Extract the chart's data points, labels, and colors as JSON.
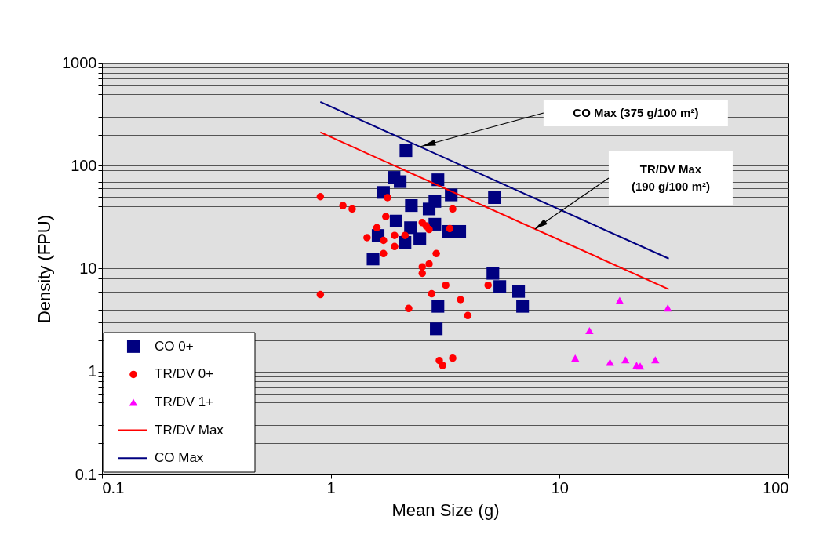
{
  "chart_data": {
    "type": "scatter",
    "xlabel": "Mean Size (g)",
    "ylabel": "Density (FPU)",
    "log": "xy",
    "xlim": [
      0.1,
      100
    ],
    "ylim": [
      0.1,
      1000
    ],
    "xticks": [
      0.1,
      1,
      10,
      100
    ],
    "yticks": [
      0.1,
      {
        "value": 0.2,
        "label": null
      },
      {
        "value": 0.3,
        "label": null
      },
      {
        "value": 0.4,
        "label": null
      },
      {
        "value": 0.5,
        "label": null
      },
      {
        "value": 0.6,
        "label": null
      },
      {
        "value": 0.7,
        "label": null
      },
      {
        "value": 0.8,
        "label": null
      },
      {
        "value": 0.9,
        "label": null
      },
      1,
      {
        "value": 2,
        "label": null
      },
      {
        "value": 3,
        "label": null
      },
      {
        "value": 4,
        "label": null
      },
      {
        "value": 5,
        "label": null
      },
      {
        "value": 6,
        "label": null
      },
      {
        "value": 7,
        "label": null
      },
      {
        "value": 8,
        "label": null
      },
      {
        "value": 9,
        "label": null
      },
      10,
      {
        "value": 20,
        "label": null
      },
      {
        "value": 30,
        "label": null
      },
      {
        "value": 40,
        "label": null
      },
      {
        "value": 50,
        "label": null
      },
      {
        "value": 60,
        "label": null
      },
      {
        "value": 70,
        "label": null
      },
      {
        "value": 80,
        "label": null
      },
      {
        "value": 90,
        "label": null
      },
      100,
      {
        "value": 200,
        "label": null
      },
      {
        "value": 300,
        "label": null
      },
      {
        "value": 400,
        "label": null
      },
      {
        "value": 500,
        "label": null
      },
      {
        "value": 600,
        "label": null
      },
      {
        "value": 700,
        "label": null
      },
      {
        "value": 800,
        "label": null
      },
      {
        "value": 900,
        "label": null
      },
      1000
    ],
    "grid": "y",
    "legend": "bottom left",
    "series": [
      {
        "name": "CO 0+",
        "color": "#000080",
        "marker": "square",
        "x": [
          2.13,
          1.89,
          2.01,
          1.7,
          2.94,
          3.36,
          5.19,
          2.25,
          2.85,
          2.69,
          1.93,
          2.23,
          2.85,
          3.26,
          3.66,
          1.61,
          2.11,
          2.45,
          1.53,
          5.11,
          5.48,
          6.62,
          6.89,
          2.94,
          2.89
        ],
        "values": [
          140,
          77,
          70,
          55,
          73,
          52,
          49,
          41,
          45,
          38,
          29,
          25,
          27,
          23,
          23,
          21,
          18,
          19.5,
          12.4,
          9.0,
          6.7,
          6.0,
          4.3,
          4.3,
          2.6
        ]
      },
      {
        "name": "TR/DV 0+",
        "color": "#ff0000",
        "marker": "circle",
        "x": [
          0.9,
          1.13,
          1.24,
          1.77,
          1.74,
          1.59,
          1.44,
          1.7,
          1.9,
          2.11,
          1.9,
          1.7,
          2.51,
          2.61,
          2.69,
          3.41,
          3.31,
          2.89,
          2.69,
          2.51,
          2.51,
          3.18,
          2.76,
          4.87,
          3.69,
          3.97,
          2.19,
          0.9,
          2.98,
          3.08,
          3.41
        ],
        "values": [
          50,
          41,
          38,
          49,
          32,
          25,
          20,
          18.8,
          21,
          21,
          16.4,
          14,
          28,
          26,
          24,
          38,
          24.5,
          14,
          11.1,
          10.4,
          9.0,
          6.9,
          5.7,
          6.9,
          5.0,
          3.5,
          4.1,
          5.6,
          1.28,
          1.15,
          1.35
        ]
      },
      {
        "name": "TR/DV 1+",
        "color": "#ff00ff",
        "marker": "triangle",
        "x": [
          18.3,
          29.7,
          13.5,
          11.7,
          16.6,
          19.4,
          21.7,
          22.5,
          26.2
        ],
        "values": [
          4.9,
          4.15,
          2.5,
          1.35,
          1.23,
          1.3,
          1.15,
          1.13,
          1.3
        ]
      },
      {
        "name": "TR/DV Max",
        "type": "line",
        "color": "#ff0000",
        "x": [
          0.9,
          30
        ],
        "values": [
          211,
          6.3
        ]
      },
      {
        "name": "CO Max",
        "type": "line",
        "color": "#000080",
        "x": [
          0.9,
          30
        ],
        "values": [
          417,
          12.5
        ]
      }
    ],
    "annotations": [
      "CO Max (375 g/100 m²)",
      "TR/DV Max\n(190 g/100 m²)"
    ]
  }
}
